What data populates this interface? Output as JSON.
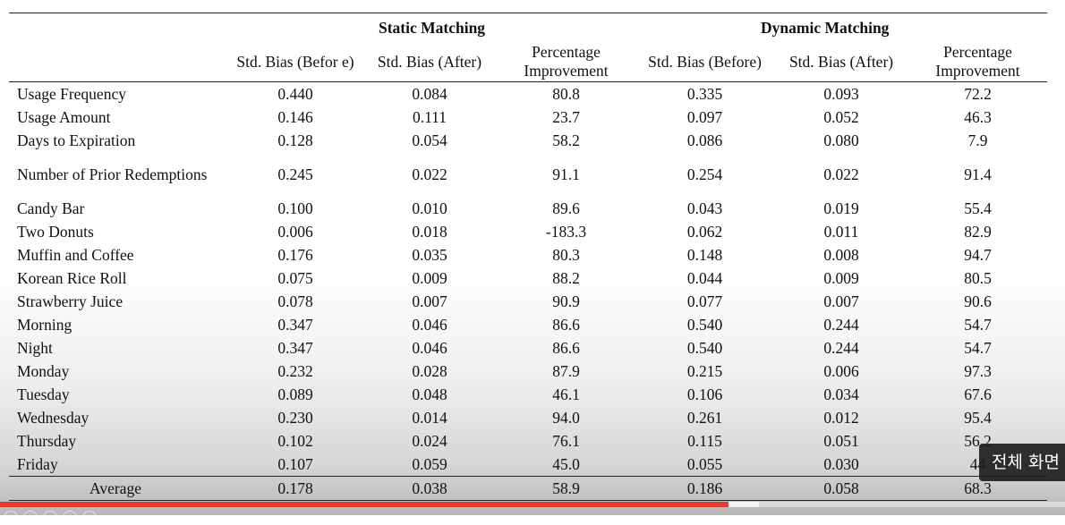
{
  "table": {
    "groups": [
      "Static Matching",
      "Dynamic Matching"
    ],
    "subheaders": [
      "Std. Bias (Befor e)",
      "Std. Bias (After)",
      "Percentage Improvement",
      "Std. Bias (Before)",
      "Std. Bias (After)",
      "Percentage Improvement"
    ],
    "rows": [
      {
        "label": "Usage Frequency",
        "v": [
          "0.440",
          "0.084",
          "80.8",
          "0.335",
          "0.093",
          "72.2"
        ]
      },
      {
        "label": "Usage Amount",
        "v": [
          "0.146",
          "0.111",
          "23.7",
          "0.097",
          "0.052",
          "46.3"
        ]
      },
      {
        "label": "Days to Expiration",
        "v": [
          "0.128",
          "0.054",
          "58.2",
          "0.086",
          "0.080",
          "7.9"
        ]
      },
      {
        "label": "Number of Prior Redemptions",
        "v": [
          "0.245",
          "0.022",
          "91.1",
          "0.254",
          "0.022",
          "91.4"
        ]
      },
      {
        "label": "Candy Bar",
        "v": [
          "0.100",
          "0.010",
          "89.6",
          "0.043",
          "0.019",
          "55.4"
        ]
      },
      {
        "label": "Two Donuts",
        "v": [
          "0.006",
          "0.018",
          "-183.3",
          "0.062",
          "0.011",
          "82.9"
        ]
      },
      {
        "label": "Muffin and Coffee",
        "v": [
          "0.176",
          "0.035",
          "80.3",
          "0.148",
          "0.008",
          "94.7"
        ]
      },
      {
        "label": "Korean Rice Roll",
        "v": [
          "0.075",
          "0.009",
          "88.2",
          "0.044",
          "0.009",
          "80.5"
        ]
      },
      {
        "label": "Strawberry Juice",
        "v": [
          "0.078",
          "0.007",
          "90.9",
          "0.077",
          "0.007",
          "90.6"
        ]
      },
      {
        "label": "Morning",
        "v": [
          "0.347",
          "0.046",
          "86.6",
          "0.540",
          "0.244",
          "54.7"
        ]
      },
      {
        "label": "Night",
        "v": [
          "0.347",
          "0.046",
          "86.6",
          "0.540",
          "0.244",
          "54.7"
        ]
      },
      {
        "label": "Monday",
        "v": [
          "0.232",
          "0.028",
          "87.9",
          "0.215",
          "0.006",
          "97.3"
        ]
      },
      {
        "label": "Tuesday",
        "v": [
          "0.089",
          "0.048",
          "46.1",
          "0.106",
          "0.034",
          "67.6"
        ]
      },
      {
        "label": "Wednesday",
        "v": [
          "0.230",
          "0.014",
          "94.0",
          "0.261",
          "0.012",
          "95.4"
        ]
      },
      {
        "label": "Thursday",
        "v": [
          "0.102",
          "0.024",
          "76.1",
          "0.115",
          "0.051",
          "56.2"
        ]
      },
      {
        "label": "Friday",
        "v": [
          "0.107",
          "0.059",
          "45.0",
          "0.055",
          "0.030",
          "44"
        ]
      }
    ],
    "average": {
      "label": "Average",
      "v": [
        "0.178",
        "0.038",
        "58.9",
        "0.186",
        "0.058",
        "68.3"
      ]
    }
  },
  "toast": {
    "text": "전체 화면"
  },
  "player": {
    "progress_played_fraction": 0.684,
    "progress_buffered_fraction": 0.713,
    "progress_color": "#e53b2e"
  }
}
